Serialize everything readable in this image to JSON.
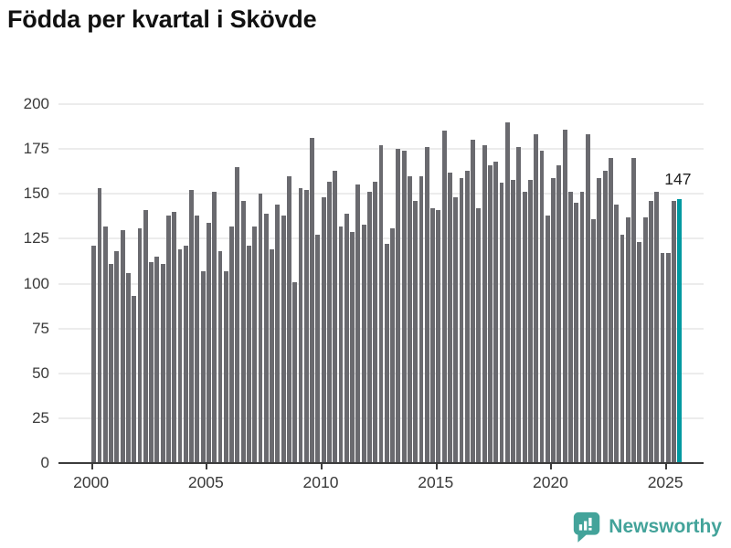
{
  "title": "Födda per kvartal i Skövde",
  "annotation": {
    "value": "147"
  },
  "branding": {
    "name": "Newsworthy",
    "icon": "newsworthy-bubble-chart-icon"
  },
  "colors": {
    "bar": "#6a6a6f",
    "highlight": "#0099a1",
    "grid": "#ececec",
    "axis": "#3c3c3c",
    "title": "#111111",
    "tick_label": "#3a3a3a",
    "annotation": "#1f1f1f",
    "brand": "#43a39a",
    "background": "#ffffff"
  },
  "chart_data": {
    "type": "bar",
    "title": "Födda per kvartal i Skövde",
    "xlabel": "",
    "ylabel": "",
    "x_unit": "quarter",
    "x_start_year": 2000,
    "values": [
      121,
      153,
      132,
      111,
      118,
      130,
      106,
      93,
      131,
      141,
      112,
      115,
      111,
      138,
      140,
      119,
      121,
      152,
      138,
      107,
      134,
      151,
      118,
      107,
      132,
      165,
      146,
      121,
      132,
      150,
      139,
      119,
      144,
      138,
      160,
      101,
      153,
      152,
      181,
      127,
      148,
      157,
      163,
      132,
      139,
      129,
      155,
      133,
      151,
      157,
      177,
      122,
      131,
      175,
      174,
      160,
      146,
      160,
      176,
      142,
      141,
      185,
      162,
      148,
      159,
      163,
      180,
      142,
      177,
      166,
      168,
      156,
      190,
      158,
      176,
      151,
      158,
      183,
      174,
      138,
      159,
      166,
      186,
      151,
      145,
      151,
      183,
      136,
      159,
      163,
      170,
      144,
      127,
      137,
      170,
      123,
      137,
      146,
      151,
      117,
      117,
      146,
      147
    ],
    "highlight_index": 102,
    "highlight_label": "147",
    "yticks": [
      0,
      25,
      50,
      75,
      100,
      125,
      150,
      175,
      200
    ],
    "ylim": [
      0,
      200
    ],
    "xticks": [
      "2000",
      "2005",
      "2010",
      "2015",
      "2020",
      "2025"
    ],
    "xtick_indices": [
      0,
      20,
      40,
      60,
      80,
      100
    ],
    "grid": true,
    "legend": false
  }
}
